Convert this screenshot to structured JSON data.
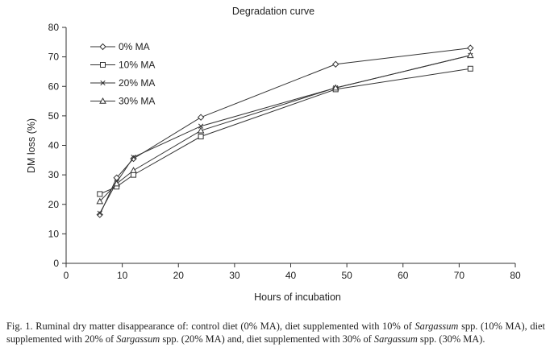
{
  "chart_data": {
    "type": "line",
    "title": "Degradation curve",
    "xlabel": "Hours of incubation",
    "ylabel": "DM loss (%)",
    "xlim": [
      0,
      80
    ],
    "ylim": [
      0,
      80
    ],
    "xticks": [
      0,
      10,
      20,
      30,
      40,
      50,
      60,
      70,
      80
    ],
    "yticks": [
      0,
      10,
      20,
      30,
      40,
      50,
      60,
      70,
      80
    ],
    "grid": false,
    "legend_position": "top-left",
    "x": [
      6,
      9,
      12,
      24,
      48,
      72
    ],
    "series": [
      {
        "name": "0% MA",
        "marker": "diamond",
        "values": [
          16.5,
          29.0,
          35.5,
          49.5,
          67.5,
          73.0
        ]
      },
      {
        "name": "10% MA",
        "marker": "square",
        "values": [
          23.5,
          26.0,
          30.0,
          43.0,
          59.0,
          66.0
        ]
      },
      {
        "name": "20% MA",
        "marker": "x",
        "values": [
          17.0,
          27.5,
          36.0,
          46.5,
          59.5,
          70.5
        ]
      },
      {
        "name": "30% MA",
        "marker": "triangle",
        "values": [
          21.0,
          27.0,
          31.5,
          45.0,
          59.5,
          70.5
        ]
      }
    ]
  },
  "caption": {
    "p1": "Fig. 1. Ruminal dry matter disappearance of: control diet (0% MA), diet supplemented with 10% of ",
    "i1": "Sargassum",
    "p2": " spp. (10% MA), diet supplemented with 20% of ",
    "i2": "Sargassum",
    "p3": " spp. (20% MA) and, diet supplemented with 30% of ",
    "i3": "Sargassum",
    "p4": " spp. (30% MA)."
  }
}
